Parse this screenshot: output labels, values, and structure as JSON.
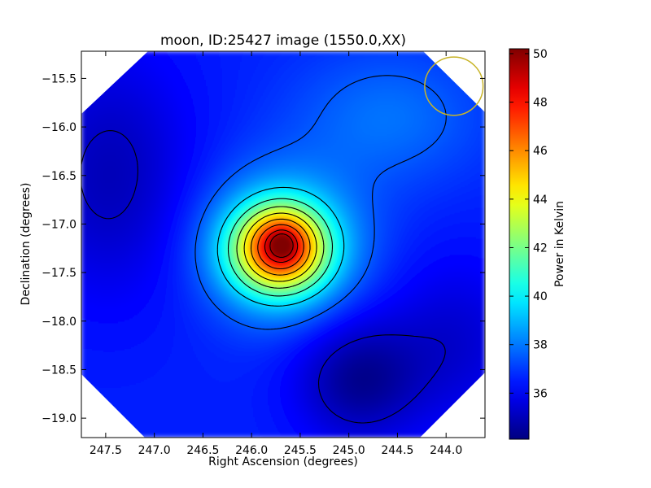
{
  "chart_data": {
    "type": "heatmap",
    "title": "moon, ID:25427 image (1550.0,XX)",
    "xlabel": "Right Ascension (degrees)",
    "ylabel": "Declination (degrees)",
    "xlim": [
      247.75,
      243.6
    ],
    "ylim": [
      -19.2,
      -15.22
    ],
    "x_ticks": [
      247.5,
      247.0,
      246.5,
      246.0,
      245.5,
      245.0,
      244.5,
      244.0
    ],
    "x_tick_labels": [
      "247.5",
      "247.0",
      "246.5",
      "246.0",
      "245.5",
      "245.0",
      "244.5",
      "244.0"
    ],
    "y_ticks": [
      -15.5,
      -16.0,
      -16.5,
      -17.0,
      -17.5,
      -18.0,
      -18.5,
      -19.0
    ],
    "y_tick_labels": [
      "−15.5",
      "−16.0",
      "−16.5",
      "−17.0",
      "−17.5",
      "−18.0",
      "−18.5",
      "−19.0"
    ],
    "colorbar": {
      "label": "Power in Kelvin",
      "range": [
        34.1,
        50.2
      ],
      "ticks": [
        36,
        38,
        40,
        42,
        44,
        46,
        48,
        50
      ],
      "tick_labels": [
        "36",
        "38",
        "40",
        "42",
        "44",
        "46",
        "48",
        "50"
      ],
      "colormap": "jet"
    },
    "field": {
      "background_kelvin": 36.6,
      "peak": {
        "ra": 245.68,
        "dec": -17.2,
        "value_kelvin": 50.0
      },
      "minimum": {
        "ra": 244.9,
        "dec": -18.6,
        "value_kelvin": 34.2
      },
      "source_core_sigma_deg": 0.23,
      "source_halo_sigma_deg": 0.55,
      "contour_levels_kelvin": [
        35.2,
        37.5,
        39.5,
        41.0,
        42.5,
        44.0,
        45.5,
        47.0,
        48.5,
        49.6
      ]
    },
    "beam_circle": {
      "ra": 243.92,
      "dec": -15.58,
      "radius_deg": 0.3,
      "color": "#c8b428"
    },
    "map_shape": "octagon",
    "grid": false
  }
}
